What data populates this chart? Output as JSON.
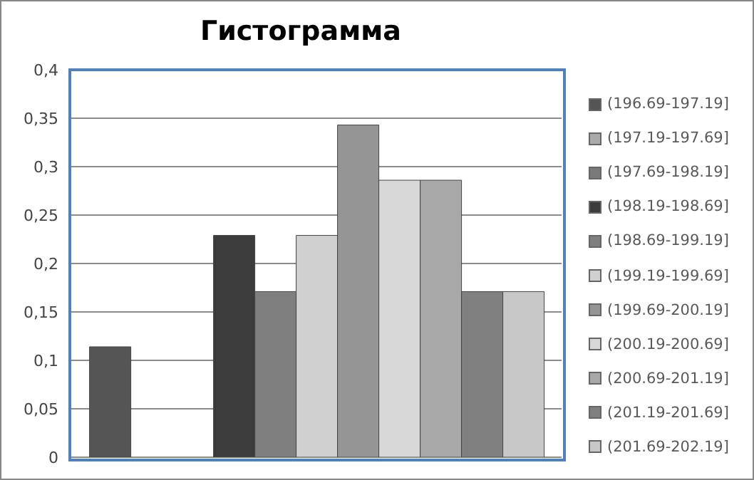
{
  "chart_data": {
    "type": "bar",
    "title": "Гистограмма",
    "categories": [
      null
    ],
    "series": [
      {
        "name": "(196.69-197.19]",
        "color": "#555555",
        "values": [
          0.114
        ]
      },
      {
        "name": "(197.19-197.69]",
        "color": "#aaaaaa",
        "values": [
          0
        ]
      },
      {
        "name": "(197.69-198.19]",
        "color": "#7a7a7a",
        "values": [
          0
        ]
      },
      {
        "name": "(198.19-198.69]",
        "color": "#3c3c3c",
        "values": [
          0.229
        ]
      },
      {
        "name": "(198.69-199.19]",
        "color": "#7f7f7f",
        "values": [
          0.171
        ]
      },
      {
        "name": "(199.19-199.69]",
        "color": "#d0d0d0",
        "values": [
          0.229
        ]
      },
      {
        "name": "(199.69-200.19]",
        "color": "#959595",
        "values": [
          0.343
        ]
      },
      {
        "name": "(200.19-200.69]",
        "color": "#d8d8d8",
        "values": [
          0.286
        ]
      },
      {
        "name": "(200.69-201.19]",
        "color": "#a8a8a8",
        "values": [
          0.286
        ]
      },
      {
        "name": "(201.19-201.69]",
        "color": "#808080",
        "values": [
          0.171
        ]
      },
      {
        "name": "(201.69-202.19]",
        "color": "#c8c8c8",
        "values": [
          0.171
        ]
      }
    ],
    "ylim": [
      0,
      0.4
    ],
    "yticks": [
      0,
      {
        "value": 0.05,
        "label": "0,05"
      },
      {
        "value": 0.1,
        "label": "0,1"
      },
      {
        "value": 0.15,
        "label": "0,15"
      },
      {
        "value": 0.2,
        "label": "0,2"
      },
      {
        "value": 0.25,
        "label": "0,25"
      },
      {
        "value": 0.3,
        "label": "0,3"
      },
      {
        "value": 0.35,
        "label": "0,35"
      },
      {
        "value": 0.4,
        "label": "0,4"
      }
    ],
    "grid": "y",
    "legend": "right",
    "tick_labels": "y"
  }
}
